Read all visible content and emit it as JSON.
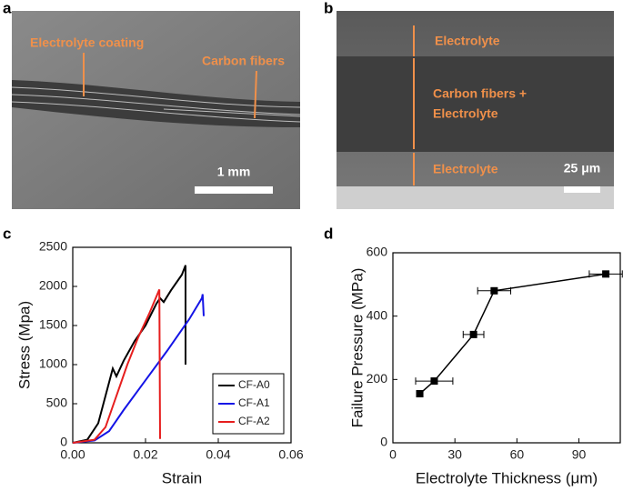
{
  "panels": [
    {
      "label": "a",
      "annotations": [
        "Electrolyte coating",
        "Carbon fibers"
      ],
      "scale_bar": "1 mm"
    },
    {
      "label": "b",
      "annotations": [
        "Electrolyte",
        "Carbon fibers +",
        "Electrolyte",
        "Electrolyte"
      ],
      "scale_bar": "25 μm"
    }
  ],
  "chart_data": [
    {
      "type": "line",
      "panel_label": "c",
      "x_label": "Strain",
      "y_label": "Stress (Mpa)",
      "xlim": [
        0,
        0.06
      ],
      "xticks": [
        {
          "value": 0,
          "label": "0.00"
        },
        0.02,
        0.04,
        0.06
      ],
      "ylim": [
        0,
        2500
      ],
      "yticks": [
        0,
        500,
        1000,
        1500,
        2000,
        2500
      ],
      "legend": "lower right",
      "series": [
        {
          "name": "CF-A0",
          "color": "#000000",
          "x": [
            0,
            0.004,
            0.007,
            0.009,
            0.011,
            0.012,
            0.014,
            0.017,
            0.02,
            0.023,
            0.024,
            0.025,
            0.027,
            0.03,
            0.031,
            0.031
          ],
          "y": [
            0,
            40,
            250,
            600,
            950,
            850,
            1050,
            1300,
            1500,
            1780,
            1850,
            1800,
            1950,
            2150,
            2270,
            1000
          ]
        },
        {
          "name": "CF-A1",
          "color": "#1414e6",
          "x": [
            0,
            0.006,
            0.01,
            0.014,
            0.02,
            0.026,
            0.032,
            0.0355,
            0.0357,
            0.036
          ],
          "y": [
            0,
            30,
            150,
            420,
            800,
            1180,
            1580,
            1850,
            1900,
            1620
          ]
        },
        {
          "name": "CF-A2",
          "color": "#e61e1e",
          "x": [
            0,
            0.006,
            0.009,
            0.012,
            0.015,
            0.018,
            0.021,
            0.0238,
            0.024
          ],
          "y": [
            0,
            40,
            200,
            600,
            1000,
            1350,
            1650,
            1960,
            50
          ]
        }
      ]
    },
    {
      "type": "scatter",
      "panel_label": "d",
      "x_label": "Electrolyte Thickness (μm)",
      "y_label": "Failure Pressure (MPa)",
      "xlim": [
        0,
        110
      ],
      "xticks": [
        0,
        30,
        60,
        90
      ],
      "ylim": [
        0,
        600
      ],
      "yticks": [
        0,
        200,
        400,
        600
      ],
      "color": "#000000",
      "x": [
        13,
        20,
        39,
        49,
        103
      ],
      "y": [
        155,
        195,
        342,
        480,
        533
      ],
      "xerr": [
        1.5,
        9,
        5,
        8,
        8
      ]
    }
  ]
}
